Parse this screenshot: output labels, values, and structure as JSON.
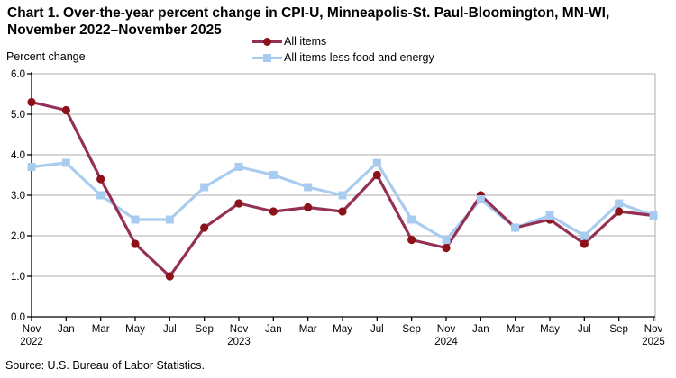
{
  "title": "Chart 1. Over-the-year percent change in CPI-U, Minneapolis-St. Paul-Bloomington, MN-WI, November 2022–November 2025",
  "source": "Source: U.S. Bureau of Labor Statistics.",
  "colors": {
    "all_items_line": "#943055",
    "all_items_marker": "#8C1219",
    "core_line": "#A8CCF0",
    "core_marker": "#A8CCF0",
    "gridline": "#ADADAD",
    "axis": "#000000"
  },
  "chart_data": {
    "type": "line",
    "title": "Chart 1. Over-the-year percent change in CPI-U, Minneapolis-St. Paul-Bloomington, MN-WI, November 2022–November 2025",
    "xlabel": "",
    "ylabel": "Percent change",
    "ylim": [
      0.0,
      6.0
    ],
    "ytick_interval": 1.0,
    "ytick_labels": [
      "0.0",
      "1.0",
      "2.0",
      "3.0",
      "4.0",
      "5.0",
      "6.0"
    ],
    "grid": true,
    "legend_position": "top-center",
    "categories": [
      {
        "label": "Nov",
        "year": "2022"
      },
      {
        "label": "Jan"
      },
      {
        "label": "Mar"
      },
      {
        "label": "May"
      },
      {
        "label": "Jul"
      },
      {
        "label": "Sep"
      },
      {
        "label": "Nov",
        "year": "2023"
      },
      {
        "label": "Jan"
      },
      {
        "label": "Mar"
      },
      {
        "label": "May"
      },
      {
        "label": "Jul"
      },
      {
        "label": "Sep"
      },
      {
        "label": "Nov",
        "year": "2024"
      },
      {
        "label": "Jan"
      },
      {
        "label": "Mar"
      },
      {
        "label": "May"
      },
      {
        "label": "Jul"
      },
      {
        "label": "Sep"
      },
      {
        "label": "Nov",
        "year": "2025"
      }
    ],
    "series": [
      {
        "name": "All items",
        "marker": "circle",
        "line_color": "#943055",
        "marker_color": "#8C1219",
        "values": [
          5.3,
          5.1,
          3.4,
          1.8,
          1.0,
          2.2,
          2.8,
          2.6,
          2.7,
          2.6,
          3.5,
          1.9,
          1.7,
          3.0,
          2.2,
          2.4,
          1.8,
          2.6,
          2.5
        ]
      },
      {
        "name": "All items less food and energy",
        "marker": "square",
        "line_color": "#A8CCF0",
        "marker_color": "#A8CCF0",
        "values": [
          3.7,
          3.8,
          3.0,
          2.4,
          2.4,
          3.2,
          3.7,
          3.5,
          3.2,
          3.0,
          3.8,
          2.4,
          1.9,
          2.9,
          2.2,
          2.5,
          2.0,
          2.8,
          2.5
        ]
      }
    ]
  }
}
